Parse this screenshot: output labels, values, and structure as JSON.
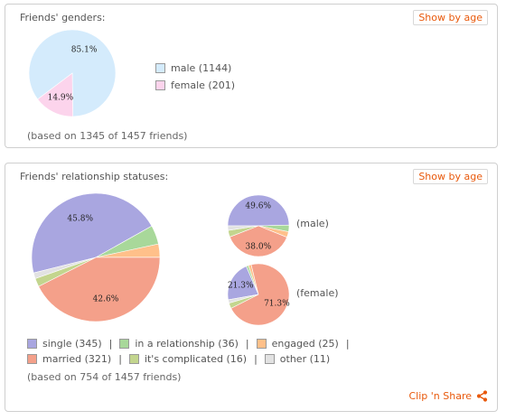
{
  "genders": {
    "title": "Friends' genders:",
    "button": "Show by age",
    "note": "(based on 1345 of 1457 friends)",
    "legend": [
      {
        "label": "male (1144)",
        "color": "#d4ebfc"
      },
      {
        "label": "female (201)",
        "color": "#fcd4ec"
      }
    ]
  },
  "relationship": {
    "title": "Friends' relationship statuses:",
    "button": "Show by age",
    "note": "(based on 754 of 1457 friends)",
    "male_label": "(male)",
    "female_label": "(female)",
    "legend": [
      {
        "label": "single (345)",
        "color": "#a9a6e0"
      },
      {
        "label": "in a relationship (36)",
        "color": "#a8d89a"
      },
      {
        "label": "engaged (25)",
        "color": "#ffc08a"
      },
      {
        "label": "married (321)",
        "color": "#f4a08a"
      },
      {
        "label": "it's complicated (16)",
        "color": "#c3d58e"
      },
      {
        "label": "other (11)",
        "color": "#e2e2e2"
      }
    ],
    "separator": "|"
  },
  "clip_label": "Clip 'n Share",
  "chart_data": [
    {
      "type": "pie",
      "title": "Friends' genders:",
      "labels": [
        "male",
        "female"
      ],
      "values": [
        1144,
        201
      ],
      "slice_labels": [
        "85.1%",
        "14.9%"
      ],
      "colors": [
        "#d4ebfc",
        "#fcd4ec"
      ]
    },
    {
      "type": "pie",
      "title": "Friends' relationship statuses:",
      "labels": [
        "single",
        "in a relationship",
        "engaged",
        "married",
        "it's complicated",
        "other"
      ],
      "values": [
        345,
        36,
        25,
        321,
        16,
        11
      ],
      "slice_labels": [
        "45.8%",
        "",
        "",
        "42.6%",
        "",
        ""
      ],
      "colors": [
        "#a9a6e0",
        "#a8d89a",
        "#ffc08a",
        "#f4a08a",
        "#c3d58e",
        "#e2e2e2"
      ]
    },
    {
      "type": "pie",
      "title": "(male)",
      "labels": [
        "single",
        "in a relationship",
        "engaged",
        "married",
        "it's complicated",
        "other"
      ],
      "values": [
        49.6,
        3.5,
        3.0,
        38.0,
        3.5,
        2.4
      ],
      "slice_labels": [
        "49.6%",
        "",
        "",
        "38.0%",
        "",
        ""
      ],
      "colors": [
        "#a9a6e0",
        "#a8d89a",
        "#ffc08a",
        "#f4a08a",
        "#c3d58e",
        "#e2e2e2"
      ]
    },
    {
      "type": "pie",
      "title": "(female)",
      "labels": [
        "single",
        "in a relationship",
        "engaged",
        "married",
        "it's complicated",
        "other"
      ],
      "values": [
        21.3,
        1.2,
        1.5,
        71.3,
        2.9,
        1.8
      ],
      "slice_labels": [
        "21.3%",
        "",
        "",
        "71.3%",
        "",
        ""
      ],
      "colors": [
        "#a9a6e0",
        "#a8d89a",
        "#ffc08a",
        "#f4a08a",
        "#c3d58e",
        "#e2e2e2"
      ]
    }
  ]
}
